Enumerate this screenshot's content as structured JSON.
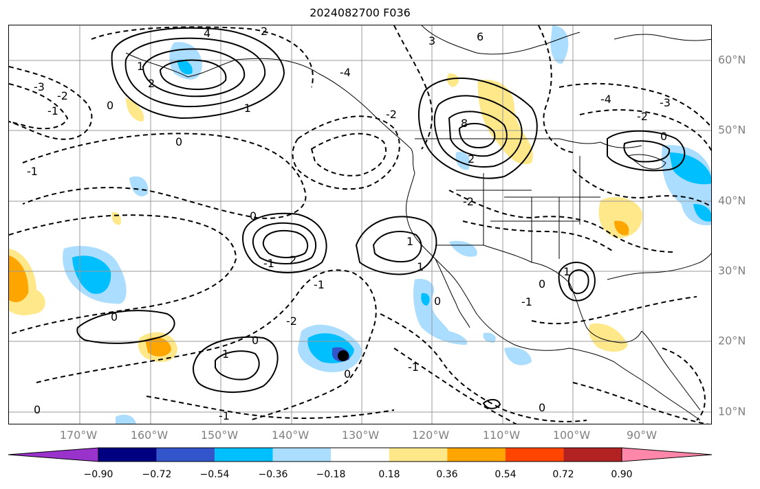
{
  "title": "2024082700 F036",
  "longitude_labels": [
    "170°W",
    "160°W",
    "150°W",
    "140°W",
    "130°W",
    "120°W",
    "110°W",
    "100°W",
    "90°W"
  ],
  "latitude_labels": [
    "60°N",
    "50°N",
    "40°N",
    "30°N",
    "20°N",
    "10°N"
  ],
  "colorbar": {
    "tick_labels": [
      "−0.90",
      "−0.72",
      "−0.54",
      "−0.36",
      "−0.18",
      "0.18",
      "0.36",
      "0.54",
      "0.72",
      "0.90"
    ],
    "colors": [
      "#9933cc",
      "#000080",
      "#3355cc",
      "#00bfff",
      "#aaddff",
      "#ffffff",
      "#ffe88a",
      "#ffa500",
      "#ff4500",
      "#b22222",
      "#ff88aa"
    ]
  },
  "contour_labels": [
    "4",
    "2",
    "6",
    "-3",
    "-2",
    "-1",
    "0",
    "3",
    "8",
    "-4",
    "-2",
    "1",
    "2",
    "0",
    "-1",
    "-4",
    "-3",
    "-2",
    "0",
    "-1",
    "-2",
    "2",
    "1",
    "-1",
    "0",
    "-1",
    "0",
    "-2",
    "1",
    "1",
    "2",
    "1",
    "0",
    "-1",
    "0",
    "-1",
    "0",
    "0",
    "0",
    "-1",
    "0"
  ],
  "colors": {
    "grid": "#999999",
    "contour": "#000000",
    "coast": "#000000"
  }
}
